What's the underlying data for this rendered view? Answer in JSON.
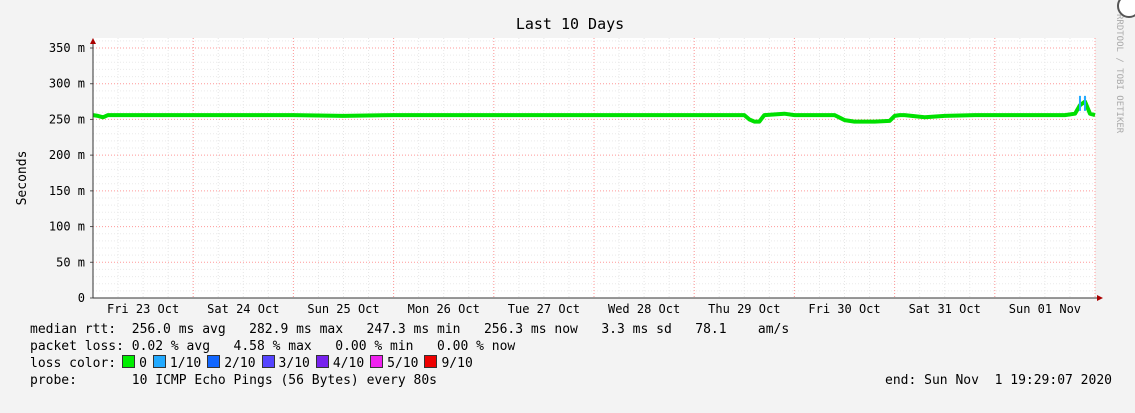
{
  "chart_data": {
    "type": "line",
    "title": "Last 10 Days",
    "ylabel": "Seconds",
    "watermark": "RRDTOOL / TOBI OETIKER",
    "y_ticks": [
      {
        "value": 0,
        "label": "0"
      },
      {
        "value": 50,
        "label": "50 m"
      },
      {
        "value": 100,
        "label": "100 m"
      },
      {
        "value": 150,
        "label": "150 m"
      },
      {
        "value": 200,
        "label": "200 m"
      },
      {
        "value": 250,
        "label": "250 m"
      },
      {
        "value": 300,
        "label": "300 m"
      },
      {
        "value": 350,
        "label": "350 m"
      }
    ],
    "ylim": [
      0,
      350
    ],
    "xlim": [
      22.0,
      32.0
    ],
    "x_ticks": [
      {
        "pos": 23,
        "label": "Fri 23 Oct"
      },
      {
        "pos": 24,
        "label": "Sat 24 Oct"
      },
      {
        "pos": 25,
        "label": "Sun 25 Oct"
      },
      {
        "pos": 26,
        "label": "Mon 26 Oct"
      },
      {
        "pos": 27,
        "label": "Tue 27 Oct"
      },
      {
        "pos": 28,
        "label": "Wed 28 Oct"
      },
      {
        "pos": 29,
        "label": "Thu 29 Oct"
      },
      {
        "pos": 30,
        "label": "Fri 30 Oct"
      },
      {
        "pos": 31,
        "label": "Sat 31 Oct"
      },
      {
        "pos": 32,
        "label": "Sun 01 Nov"
      }
    ],
    "x": [
      22.0,
      22.05,
      22.1,
      22.15,
      22.5,
      23.0,
      23.5,
      24.0,
      24.5,
      25.0,
      25.5,
      26.0,
      26.5,
      27.0,
      27.5,
      28.0,
      28.4,
      28.5,
      28.55,
      28.6,
      28.65,
      28.7,
      28.9,
      29.0,
      29.3,
      29.4,
      29.5,
      29.6,
      29.8,
      29.95,
      30.0,
      30.05,
      30.1,
      30.3,
      30.5,
      30.8,
      31.0,
      31.5,
      31.6,
      31.7,
      31.8,
      31.85,
      31.9,
      31.95,
      32.0
    ],
    "series": [
      {
        "color": "#00e000",
        "values": [
          256,
          255,
          253,
          256,
          256,
          256,
          256,
          256,
          255,
          256,
          256,
          256,
          256,
          256,
          256,
          256,
          256,
          256,
          250,
          247,
          247,
          256,
          258,
          256,
          256,
          256,
          249,
          247,
          247,
          248,
          255,
          256,
          256,
          253,
          255,
          256,
          256,
          256,
          256,
          256,
          258,
          270,
          275,
          258,
          256
        ]
      }
    ],
    "grid": true
  },
  "stats": {
    "median_rtt_label": "median rtt:",
    "median_rtt_values": "256.0 ms avg   282.9 ms max   247.3 ms min   256.3 ms now   3.3 ms sd   78.1    am/s",
    "packet_loss_label": "packet loss:",
    "packet_loss_values": "0.02 % avg   4.58 % max   0.00 % min   0.00 % now",
    "loss_color_label": "loss color:",
    "loss_colors": [
      {
        "label": "0",
        "color": "#00ee00"
      },
      {
        "label": "1/10",
        "color": "#22aaff"
      },
      {
        "label": "2/10",
        "color": "#1166ff"
      },
      {
        "label": "3/10",
        "color": "#5544ff"
      },
      {
        "label": "4/10",
        "color": "#7722ee"
      },
      {
        "label": "5/10",
        "color": "#ee22ee"
      },
      {
        "label": "9/10",
        "color": "#ee0000"
      }
    ],
    "probe_label": "probe:",
    "probe_value": "10 ICMP Echo Pings (56 Bytes) every 80s",
    "end_text": "end: Sun Nov  1 19:29:07 2020"
  }
}
